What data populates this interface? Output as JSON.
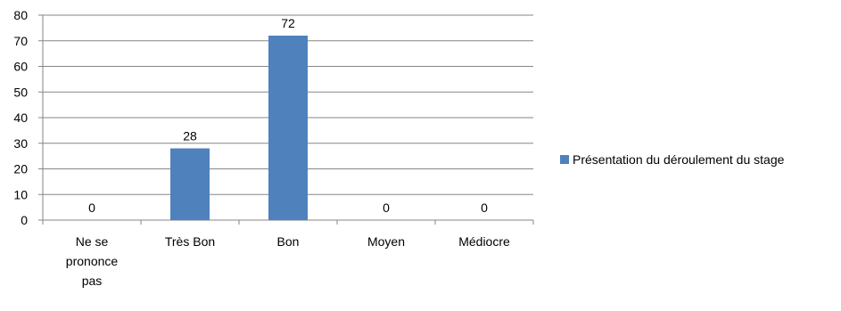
{
  "chart_data": {
    "type": "bar",
    "categories": [
      "Ne se prononce pas",
      "Très Bon",
      "Bon",
      "Moyen",
      "Médiocre"
    ],
    "category_label_lines": [
      [
        "Ne se",
        "prononce",
        "pas"
      ],
      [
        "Très Bon"
      ],
      [
        "Bon"
      ],
      [
        "Moyen"
      ],
      [
        "Médiocre"
      ]
    ],
    "series": [
      {
        "name": "Présentation du déroulement du stage",
        "values": [
          0,
          28,
          72,
          0,
          0
        ],
        "color": "#4F81BD"
      }
    ],
    "data_labels": [
      "0",
      "28",
      "72",
      "0",
      "0"
    ],
    "ylim": [
      0,
      80
    ],
    "yticks": [
      0,
      10,
      20,
      30,
      40,
      50,
      60,
      70,
      80
    ],
    "grid": true,
    "legend_position": "right",
    "title": "",
    "xlabel": "",
    "ylabel": ""
  }
}
